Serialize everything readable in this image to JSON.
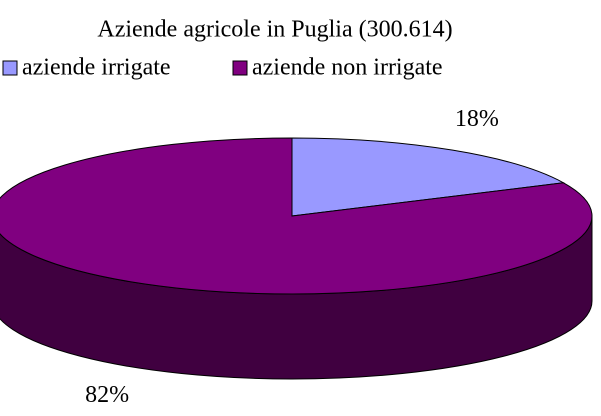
{
  "chart_data": {
    "type": "pie3d",
    "title": "Aziende agricole in Puglia (300.614)",
    "categories": [
      "aziende irrigate",
      "aziende non irrigate"
    ],
    "values": [
      18,
      82
    ],
    "value_labels": [
      "18%",
      "82%"
    ],
    "colors": [
      "#9999ff",
      "#800080"
    ],
    "legend": "top"
  }
}
